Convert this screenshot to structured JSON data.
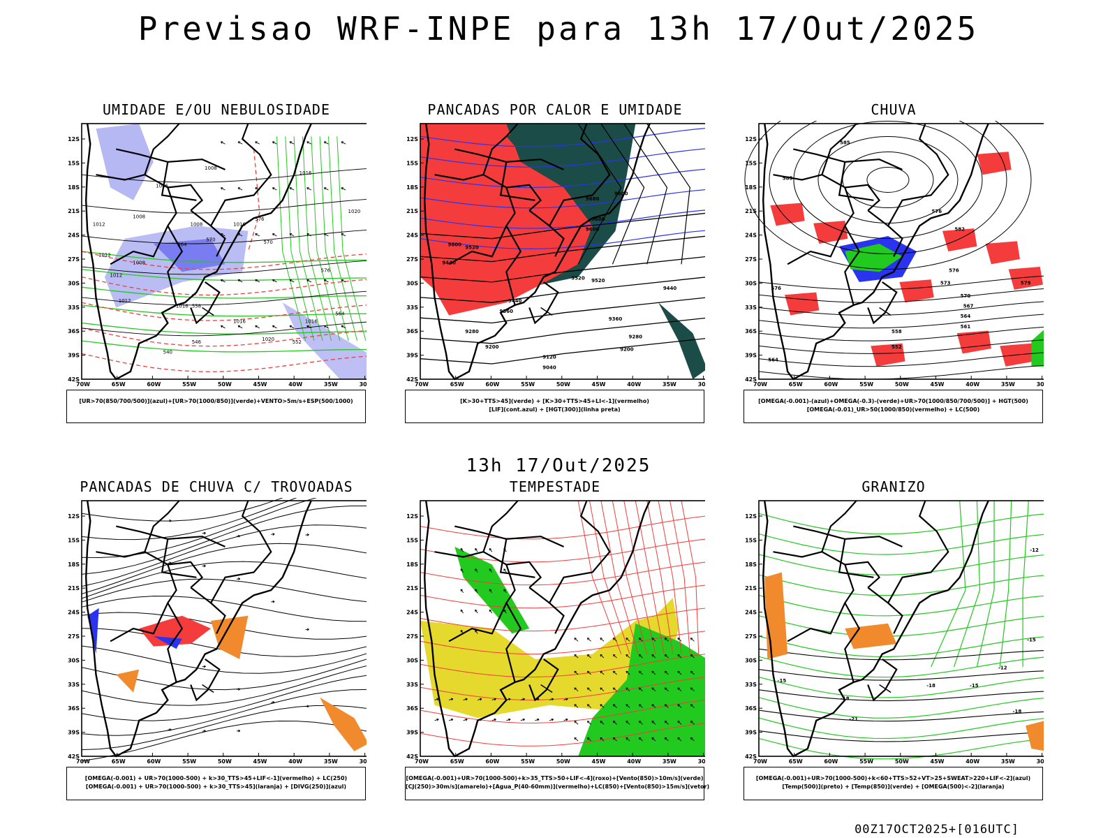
{
  "title": "Previsao WRF-INPE  para 13h 17/Out/2025",
  "subtitle": "13h 17/Out/2025",
  "footer": "00Z17OCT2025+[016UTC]",
  "lat_labels": [
    "12S",
    "15S",
    "18S",
    "21S",
    "24S",
    "27S",
    "30S",
    "33S",
    "36S",
    "39S",
    "42S"
  ],
  "lon_labels": [
    "70W",
    "65W",
    "60W",
    "55W",
    "50W",
    "45W",
    "40W",
    "35W",
    "30W"
  ],
  "colors": {
    "blue": "#aeb0f2",
    "deepblue": "#2a33ee",
    "green": "#22c91e",
    "red": "#f53c3c",
    "darkteal": "#1b4c48",
    "yellow": "#e6d92e",
    "orange": "#f08a2c",
    "black": "#000000"
  },
  "panels": [
    {
      "title": "UMIDADE E/OU NEBULOSIDADE",
      "legend": [
        "[UR>70(850/700/500)](azul)+[UR>70(1000/850)](verde)+VENTO>5m/s+ESP(500/1000)"
      ],
      "labels": [
        "1008",
        "1006",
        "1008",
        "1008",
        "1016",
        "1020",
        "1012",
        "1012",
        "1012",
        "1008",
        "1012",
        "1016",
        "1016",
        "1020",
        "1016",
        "1016",
        "576",
        "570",
        "564",
        "558",
        "570",
        "576",
        "564",
        "552",
        "546",
        "540"
      ]
    },
    {
      "title": "PANCADAS POR CALOR E UMIDADE",
      "legend": [
        "[K>30+TTS>45](verde) + [K>30+TTS>45+LI<-1](vermelho)",
        "[LIF](cont.azul) + [HGT(300)](linha preta)"
      ],
      "labels": [
        "9600",
        "9600",
        "9600",
        "9520",
        "9440",
        "9520",
        "9440",
        "9360",
        "9280",
        "9200",
        "9120",
        "9040",
        "9200",
        "9280",
        "9360",
        "9440",
        "9520",
        "9600",
        "9680"
      ]
    },
    {
      "title": "CHUVA",
      "legend": [
        "[OMEGA(-0.001)-(azul)+OMEGA(-0.3)-(verde)+UR>70(1000/850/700/500)] + HGT(500)",
        "[OMEGA(-0.01)_UR>50(1000/850)(vermelho) + LC(500)"
      ],
      "labels": [
        "585",
        "585",
        "576",
        "582",
        "576",
        "573",
        "570",
        "567",
        "564",
        "561",
        "558",
        "552",
        "564",
        "576",
        "579"
      ]
    },
    {
      "title": "PANCADAS DE CHUVA C/ TROVOADAS",
      "legend": [
        "[OMEGA(-0.001) + UR>70(1000-500) + k>30_TTS>45+LIF<-1](vermelho) + LC(250)",
        "[OMEGA(-0.001) + UR>70(1000-500) + k>30_TTS>45](laranja) + [DIVG(250)](azul)"
      ],
      "labels": []
    },
    {
      "title": "TEMPESTADE",
      "legend": [
        "[OMEGA(-0.001)+UR>70(1000-500)+k>35_TTS>50+LIF<-4](roxo)+[Vento(850)>10m/s](verde)",
        "[CJ(250)>30m/s](amarelo)+[Agua_P(40-60mm)](vermelho)+LC(850)+[Vento(850)>15m/s](vetor)"
      ],
      "labels": []
    },
    {
      "title": "GRANIZO",
      "legend": [
        "[OMEGA(-0.001)+UR>70(1000-500)+k<60+TTS>52+VT>25+SWEAT>220+LIF<-2](azul)",
        "[Temp(500)](preto) + [Temp(850)](verde) + [OMEGA(500)<-2](laranja)"
      ],
      "labels": [
        "-12",
        "-15",
        "-18",
        "-21",
        "-18",
        "-15",
        "-12",
        "-18",
        "-15"
      ]
    }
  ]
}
